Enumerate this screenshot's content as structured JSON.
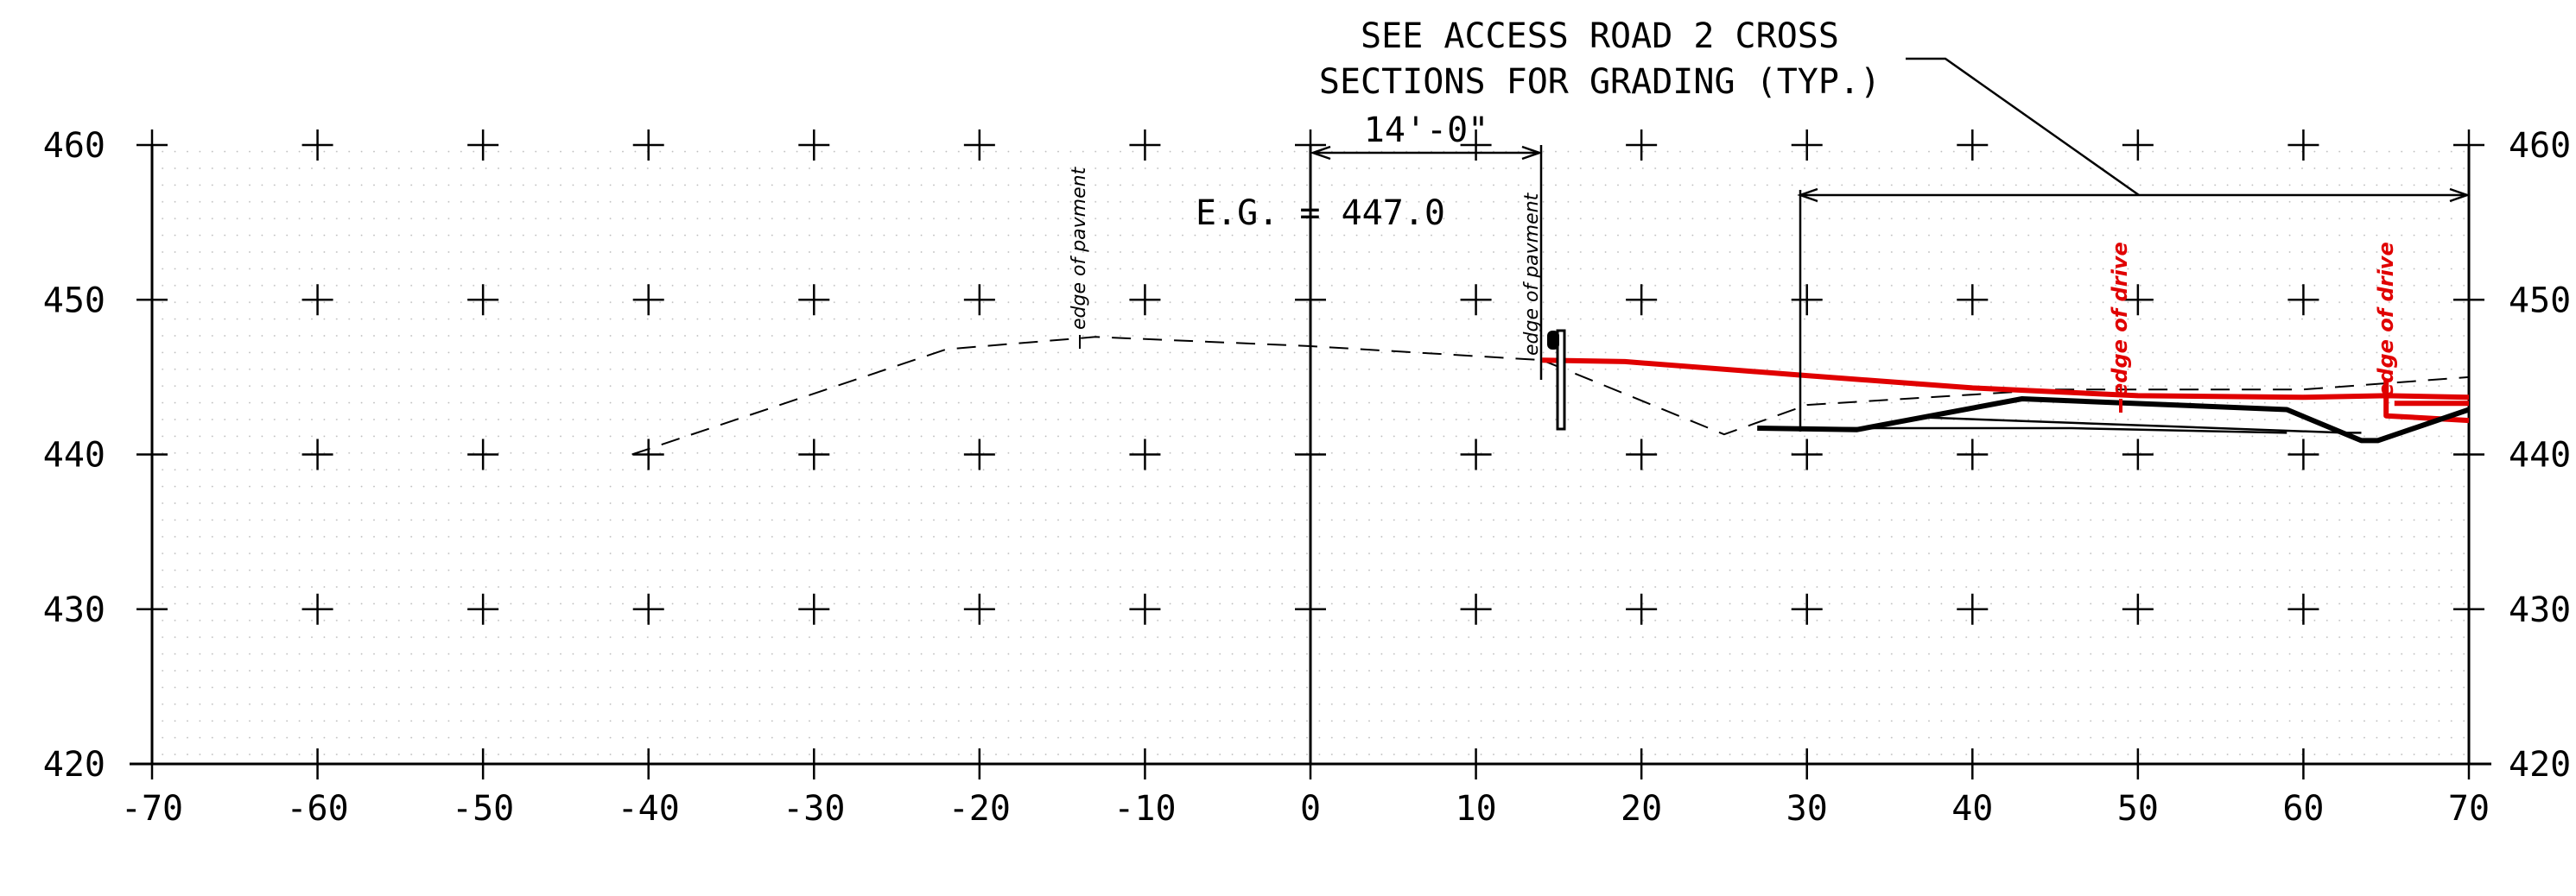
{
  "chart_data": {
    "type": "line",
    "x_ticks": [
      -70,
      -60,
      -50,
      -40,
      -30,
      -20,
      -10,
      0,
      10,
      20,
      30,
      40,
      50,
      60,
      70
    ],
    "y_ticks": [
      460,
      450,
      440,
      430,
      420
    ],
    "x_labels": [
      "-70",
      "-60",
      "-50",
      "-40",
      "-30",
      "-20",
      "-10",
      "0",
      "10",
      "20",
      "30",
      "40",
      "50",
      "60",
      "70"
    ],
    "y_labels": [
      "460",
      "450",
      "440",
      "430",
      "420"
    ],
    "xlim": [
      -70,
      70
    ],
    "ylim": [
      420,
      460
    ],
    "grid": true,
    "series": [
      {
        "style": "dashed",
        "color": "#000000",
        "x": [
          -41,
          -22,
          -13,
          0,
          14,
          25,
          30,
          45,
          60,
          70
        ],
        "y": [
          440,
          446.8,
          447.6,
          447,
          446.1,
          441.3,
          443.2,
          444.2,
          444.2,
          445
        ]
      },
      {
        "style": "solid",
        "color": "#e00000",
        "x": [
          14,
          19,
          30,
          40,
          50,
          60,
          65,
          70
        ],
        "y": [
          446.1,
          446,
          445.1,
          444.3,
          443.8,
          443.7,
          443.8,
          443.7
        ]
      },
      {
        "style": "solid",
        "color": "#e00000",
        "x": [
          65,
          65,
          70
        ],
        "y": [
          444.8,
          442.5,
          442.2
        ]
      },
      {
        "style": "solid",
        "color": "#e00000",
        "x": [
          65.5,
          70
        ],
        "y": [
          443.3,
          443.3
        ]
      },
      {
        "style": "thick",
        "color": "#000000",
        "x": [
          27,
          33,
          43,
          59,
          63.5,
          64.5,
          70
        ],
        "y": [
          441.7,
          441.6,
          443.6,
          442.9,
          440.9,
          440.9,
          442.9
        ]
      },
      {
        "style": "thin",
        "color": "#000000",
        "x": [
          28,
          46,
          59
        ],
        "y": [
          441.7,
          441.7,
          441.4
        ]
      },
      {
        "style": "thin",
        "color": "#000000",
        "x": [
          37,
          62.5,
          63.5
        ],
        "y": [
          442.4,
          441.4,
          441.4
        ]
      }
    ],
    "annotations": {
      "note_line1": "SEE ACCESS ROAD 2 CROSS",
      "note_line2": "SECTIONS FOR GRADING (TYP.)",
      "dimension": "14'-0\"",
      "eg": "E.G. = 447.0",
      "edge_pavement": "edge of pavment",
      "edge_drive": "edge of drive"
    }
  }
}
